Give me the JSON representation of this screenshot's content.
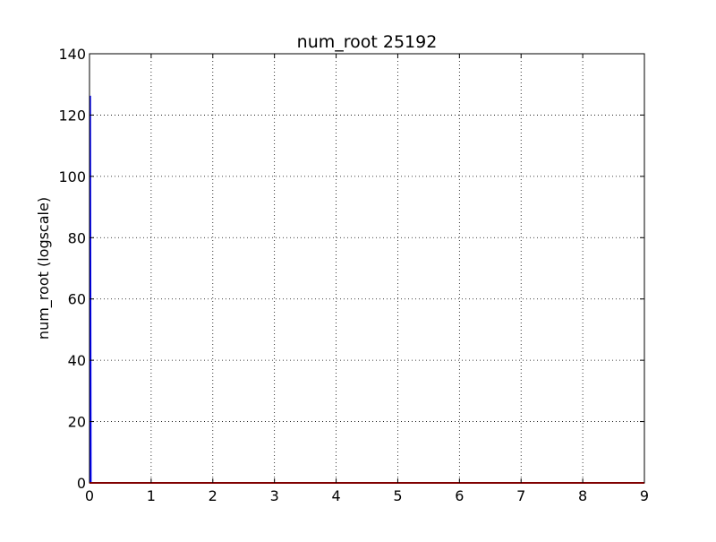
{
  "chart_data": {
    "type": "line",
    "title": "num_root 25192",
    "xlabel": "",
    "ylabel": "num_root (logscale)",
    "xlim": [
      0,
      9
    ],
    "ylim": [
      0,
      140
    ],
    "xticks": [
      0,
      1,
      2,
      3,
      4,
      5,
      6,
      7,
      8,
      9
    ],
    "yticks": [
      0,
      20,
      40,
      60,
      80,
      100,
      120,
      140
    ],
    "grid": true,
    "legend": "none",
    "series": [
      {
        "color": "#0000ff",
        "x": [
          0,
          0.01,
          0.02
        ],
        "y": [
          126,
          126,
          0
        ]
      },
      {
        "color": "#ff0000",
        "x": [
          0,
          9
        ],
        "y": [
          0,
          0
        ]
      }
    ]
  }
}
